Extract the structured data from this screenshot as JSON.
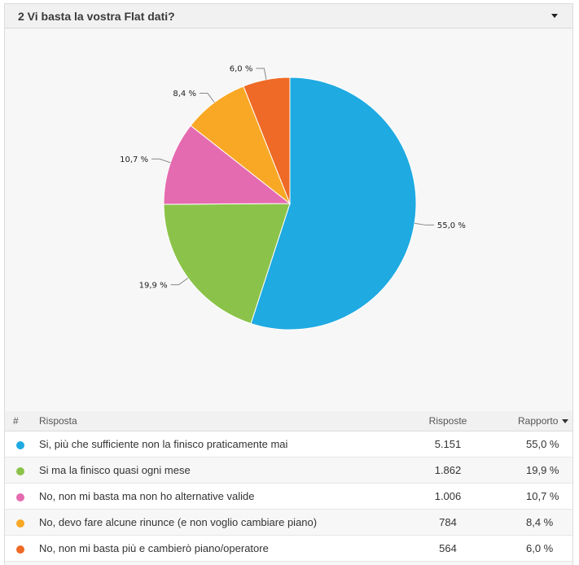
{
  "header": {
    "title": "2 Vi basta la vostra Flat dati?",
    "menu_icon": "chevron-down-icon"
  },
  "chart_data": {
    "type": "pie",
    "labels": [
      "Si, più che sufficiente non la finisco praticamente mai",
      "Si ma la finisco quasi ogni mese",
      "No, non mi basta ma non ho alternative valide",
      "No, devo fare alcune rinunce (e non voglio cambiare piano)",
      "No, non mi basta più e cambierò piano/operatore"
    ],
    "values": [
      55.0,
      19.9,
      10.7,
      8.4,
      6.0
    ],
    "data_labels": [
      "55,0 %",
      "19,9 %",
      "10,7 %",
      "8,4 %",
      "6,0 %"
    ],
    "colors": [
      "#1faae1",
      "#8bc34a",
      "#e56bb0",
      "#f9a825",
      "#ee6a26"
    ]
  },
  "table": {
    "headers": {
      "num": "#",
      "answer": "Risposta",
      "responses": "Risposte",
      "ratio": "Rapporto"
    },
    "rows": [
      {
        "answer": "Si, più che sufficiente non la finisco praticamente mai",
        "responses": "5.151",
        "ratio": "55,0 %",
        "color": "#1faae1"
      },
      {
        "answer": "Si ma la finisco quasi ogni mese",
        "responses": "1.862",
        "ratio": "19,9 %",
        "color": "#8bc34a"
      },
      {
        "answer": "No, non mi basta ma non ho alternative valide",
        "responses": "1.006",
        "ratio": "10,7 %",
        "color": "#e56bb0"
      },
      {
        "answer": "No, devo fare alcune rinunce (e non voglio cambiare piano)",
        "responses": "784",
        "ratio": "8,4 %",
        "color": "#f9a825"
      },
      {
        "answer": "No, non mi basta più e cambierò piano/operatore",
        "responses": "564",
        "ratio": "6,0 %",
        "color": "#ee6a26"
      }
    ]
  }
}
